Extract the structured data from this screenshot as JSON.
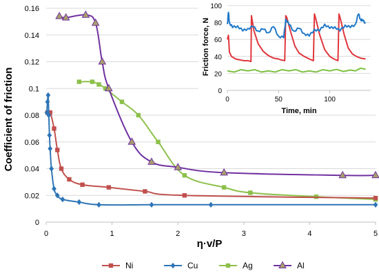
{
  "colors": {
    "Ni": "#c0504d",
    "Cu": "#2e75b6",
    "Ag": "#8cc04a",
    "Al": "#7030a0",
    "inset_red": "#e0353b",
    "inset_blue": "#1f78c8",
    "inset_green": "#7dc142",
    "grid": "#d9d9d9"
  },
  "chart_data": [
    {
      "type": "line",
      "title": "",
      "xlabel": "η·v/P",
      "ylabel": "Coefficient of friction",
      "xlim": [
        0,
        5
      ],
      "ylim": [
        0,
        0.16
      ],
      "x_ticks": [
        "0",
        "1",
        "2",
        "3",
        "4",
        "5"
      ],
      "y_ticks": [
        "0",
        "0.02",
        "0.04",
        "0.06",
        "0.08",
        "0.1",
        "0.12",
        "0.14",
        "0.16"
      ],
      "grid": "horizontal",
      "legend_position": "bottom",
      "series": [
        {
          "name": "Ni",
          "marker": "square",
          "x": [
            0.02,
            0.06,
            0.12,
            0.17,
            0.23,
            0.35,
            0.55,
            0.95,
            1.5,
            2.1,
            5.0
          ],
          "y": [
            0.082,
            0.082,
            0.07,
            0.054,
            0.04,
            0.032,
            0.028,
            0.026,
            0.023,
            0.02,
            0.018
          ]
        },
        {
          "name": "Cu",
          "marker": "diamond",
          "x": [
            0.01,
            0.02,
            0.03,
            0.04,
            0.05,
            0.06,
            0.08,
            0.12,
            0.17,
            0.25,
            0.5,
            0.8,
            1.6,
            2.5,
            5.0
          ],
          "y": [
            0.082,
            0.09,
            0.095,
            0.08,
            0.065,
            0.055,
            0.04,
            0.025,
            0.02,
            0.017,
            0.015,
            0.013,
            0.013,
            0.013,
            0.013
          ]
        },
        {
          "name": "Ag",
          "marker": "square",
          "x": [
            0.5,
            0.7,
            0.8,
            0.9,
            1.15,
            1.4,
            1.7,
            2.1,
            2.7,
            3.1,
            4.1,
            5.0
          ],
          "y": [
            0.105,
            0.105,
            0.103,
            0.1,
            0.09,
            0.08,
            0.06,
            0.035,
            0.026,
            0.022,
            0.019,
            0.017
          ]
        },
        {
          "name": "Al",
          "marker": "triangle",
          "x": [
            0.2,
            0.3,
            0.6,
            0.75,
            0.85,
            0.95,
            1.3,
            1.6,
            2.0,
            2.7,
            4.5,
            5.0
          ],
          "y": [
            0.154,
            0.153,
            0.155,
            0.149,
            0.12,
            0.1,
            0.06,
            0.045,
            0.041,
            0.037,
            0.035,
            0.035
          ]
        }
      ]
    },
    {
      "type": "line",
      "title": "",
      "xlabel": "Time, min",
      "ylabel": "Friction force, N",
      "xlim": [
        0,
        140
      ],
      "ylim": [
        0,
        100
      ],
      "x_ticks": [
        "0",
        "50",
        "100"
      ],
      "y_ticks": [
        "0",
        "20",
        "40",
        "60",
        "80",
        "100"
      ],
      "grid": "horizontal",
      "series": [
        {
          "color": "red",
          "x": [
            0,
            1,
            2,
            4,
            8,
            12,
            16,
            20,
            23,
            23.5,
            24,
            26,
            30,
            35,
            40,
            45,
            50,
            52,
            56,
            57,
            58,
            62,
            66,
            70,
            75,
            80,
            82,
            84,
            85,
            86,
            90,
            95,
            100,
            104,
            108,
            109,
            110,
            114,
            118,
            122,
            126,
            130,
            135
          ],
          "y": [
            60,
            65,
            45,
            40,
            37,
            36,
            35,
            35,
            34,
            88,
            84,
            70,
            55,
            46,
            41,
            38,
            37,
            36,
            35,
            88,
            86,
            68,
            52,
            44,
            40,
            37,
            36,
            35,
            90,
            86,
            66,
            48,
            40,
            37,
            35,
            90,
            86,
            66,
            50,
            43,
            40,
            38,
            37
          ]
        },
        {
          "color": "blue",
          "x": [
            0,
            1,
            2,
            5,
            10,
            15,
            20,
            25,
            30,
            35,
            40,
            45,
            50,
            55,
            57,
            60,
            65,
            70,
            75,
            80,
            85,
            90,
            95,
            100,
            105,
            110,
            115,
            120,
            125,
            128,
            130,
            132,
            135
          ],
          "y": [
            78,
            92,
            80,
            74,
            76,
            70,
            73,
            75,
            70,
            72,
            68,
            75,
            64,
            62,
            84,
            78,
            70,
            73,
            67,
            64,
            72,
            70,
            78,
            73,
            75,
            70,
            77,
            74,
            78,
            90,
            84,
            82,
            80
          ]
        },
        {
          "color": "green",
          "x": [
            0,
            20,
            40,
            60,
            80,
            100,
            120,
            135
          ],
          "y": [
            23,
            23,
            23,
            23,
            23,
            23,
            24,
            25
          ]
        }
      ]
    }
  ]
}
